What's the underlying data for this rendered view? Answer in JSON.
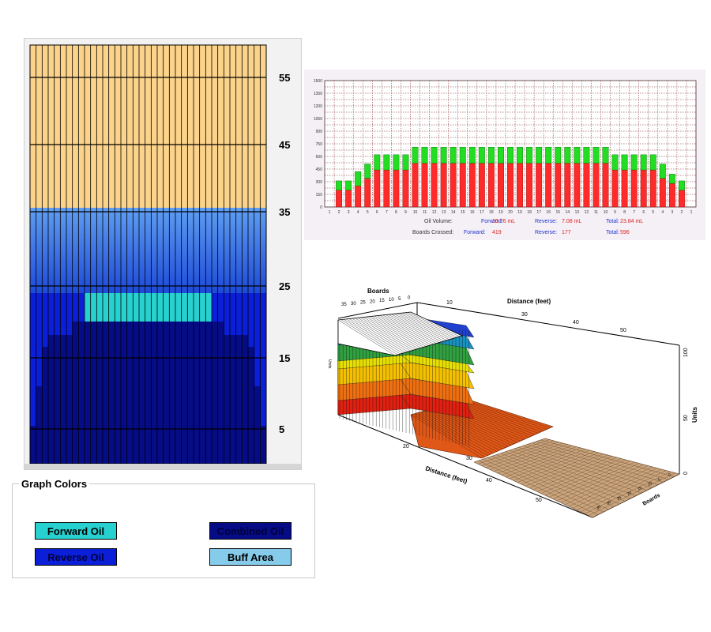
{
  "pattern": {
    "y_ticks": [
      "55",
      "45",
      "35",
      "25",
      "15",
      "5"
    ],
    "num_boards": 39,
    "colors": {
      "buff": "#fcd38a",
      "buff_top": "#fbd48c",
      "forward": "#26d1cf",
      "reverse": "#0b1fd8",
      "combined": "#060c86",
      "light_blue": "#5f9ef2",
      "mid_blue": "#2f6ee3",
      "grid_line": "#000000"
    }
  },
  "legend": {
    "title": "Graph Colors",
    "forward_label": "Forward Oil",
    "reverse_label": "Reverse Oil",
    "combined_label": "Combined Oil",
    "buff_label": "Buff Area",
    "forward_color": "#26d1cf",
    "reverse_color": "#0b1fd8",
    "combined_color": "#060c86",
    "buff_color": "#87cbeb"
  },
  "chart_data": {
    "type": "bar",
    "title": "",
    "xlabel": "",
    "ylabel": "",
    "ylim": [
      0,
      1500
    ],
    "y_ticks": [
      0,
      75,
      150,
      225,
      300,
      375,
      450,
      525,
      600,
      675,
      750,
      825,
      900,
      975,
      1050,
      1125,
      1200,
      1275,
      1350,
      1425,
      1500
    ],
    "y_tick_labels": [
      "0",
      "150",
      "300",
      "450",
      "600",
      "750",
      "900",
      "1050",
      "1200",
      "1350",
      "1500"
    ],
    "categories": [
      "1",
      "2",
      "3",
      "4",
      "5",
      "6",
      "7",
      "8",
      "9",
      "10",
      "11",
      "12",
      "13",
      "14",
      "15",
      "16",
      "17",
      "18",
      "19",
      "20",
      "19",
      "18",
      "17",
      "16",
      "15",
      "14",
      "13",
      "12",
      "11",
      "10",
      "9",
      "8",
      "7",
      "6",
      "5",
      "4",
      "3",
      "2",
      "1"
    ],
    "series": [
      {
        "name": "Forward",
        "color": "#ff2a2a",
        "values": [
          0,
          200,
          200,
          250,
          340,
          440,
          440,
          440,
          440,
          520,
          520,
          520,
          520,
          520,
          520,
          520,
          520,
          520,
          520,
          520,
          520,
          520,
          520,
          520,
          520,
          520,
          520,
          520,
          520,
          520,
          440,
          440,
          440,
          440,
          440,
          340,
          280,
          200,
          0
        ]
      },
      {
        "name": "Reverse",
        "color": "#22dd22",
        "values": [
          0,
          110,
          110,
          170,
          170,
          180,
          180,
          180,
          180,
          190,
          190,
          190,
          190,
          190,
          190,
          190,
          190,
          190,
          190,
          190,
          190,
          190,
          190,
          190,
          190,
          190,
          190,
          190,
          190,
          190,
          180,
          180,
          180,
          180,
          180,
          170,
          110,
          110,
          0
        ]
      }
    ],
    "grid": true
  },
  "stats": {
    "oil_volume_label": "Oil Volume:",
    "boards_label": "Boards Crossed:",
    "forward_label": "Forward:",
    "reverse_label": "Reverse:",
    "total_label": "Total:",
    "oil_forward": "16.76 mL",
    "oil_reverse": "7.08 mL",
    "oil_total": "23.84 mL",
    "boards_forward": "419",
    "boards_reverse": "177",
    "boards_total": "596"
  },
  "plot3d": {
    "boards_top_label": "Boards",
    "boards_top_ticks": [
      "35",
      "30",
      "25",
      "20",
      "15",
      "10",
      "5",
      "0"
    ],
    "distance_top_label": "Distance (feet)",
    "distance_top_ticks": [
      "10",
      "30",
      "40",
      "50"
    ],
    "units_label": "Units",
    "units_left_label": "Units",
    "units_ticks": [
      "100",
      "50",
      "0"
    ],
    "distance_bottom_label": "Distance (feet)",
    "distance_bottom_ticks": [
      "20",
      "30",
      "40",
      "50"
    ],
    "boards_bottom_label": "Boards",
    "boards_bottom_ticks": [
      "0",
      "5",
      "10",
      "15",
      "20",
      "25",
      "30",
      "35"
    ]
  }
}
